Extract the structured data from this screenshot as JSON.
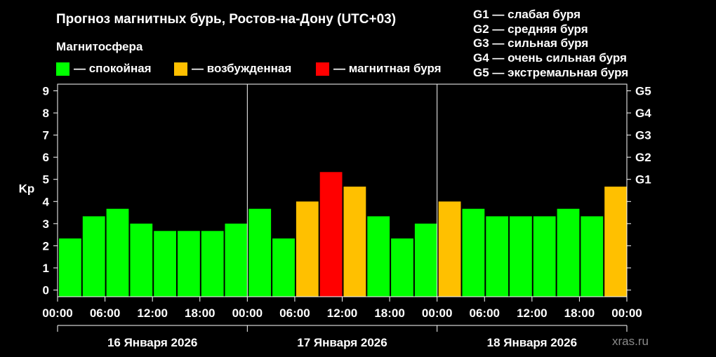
{
  "title": "Прогноз магнитных бурь, Ростов-на-Дону (UTC+03)",
  "legend": {
    "heading": "Магнитосфера",
    "items": [
      {
        "label": "— спокойная",
        "color": "#00ff00"
      },
      {
        "label": "— возбужденная",
        "color": "#ffc000"
      },
      {
        "label": "— магнитная буря",
        "color": "#ff0000"
      }
    ]
  },
  "storm_scale": [
    "G1 — слабая буря",
    "G2 — средняя буря",
    "G3 — сильная буря",
    "G4 — очень сильная буря",
    "G5 — экстремальная буря"
  ],
  "watermark": "xras.ru",
  "chart_data": {
    "type": "bar",
    "ylabel": "Kp",
    "ylim": [
      -0.3,
      9.3
    ],
    "y_ticks": [
      "0",
      "1",
      "2",
      "3",
      "4",
      "5",
      "6",
      "7",
      "8",
      "9"
    ],
    "right_ticks": [
      {
        "value": 5,
        "label": "G1"
      },
      {
        "value": 6,
        "label": "G2"
      },
      {
        "value": 7,
        "label": "G3"
      },
      {
        "value": 8,
        "label": "G4"
      },
      {
        "value": 9,
        "label": "G5"
      }
    ],
    "x_tick_labels": [
      "00:00",
      "06:00",
      "12:00",
      "18:00",
      "00:00",
      "06:00",
      "12:00",
      "18:00",
      "00:00",
      "06:00",
      "12:00",
      "18:00",
      "00:00"
    ],
    "days": [
      "16 Января 2026",
      "17 Января 2026",
      "18 Января 2026"
    ],
    "interval_hours": 3,
    "values": [
      2.33,
      3.33,
      3.67,
      3.0,
      2.67,
      2.67,
      2.67,
      3.0,
      3.67,
      2.33,
      4.0,
      5.33,
      4.67,
      3.33,
      2.33,
      3.0,
      4.0,
      3.67,
      3.33,
      3.33,
      3.33,
      3.67,
      3.33,
      4.67
    ],
    "levels": [
      "quiet",
      "quiet",
      "quiet",
      "quiet",
      "quiet",
      "quiet",
      "quiet",
      "quiet",
      "quiet",
      "quiet",
      "active",
      "storm",
      "active",
      "quiet",
      "quiet",
      "quiet",
      "active",
      "quiet",
      "quiet",
      "quiet",
      "quiet",
      "quiet",
      "quiet",
      "active"
    ],
    "level_colors": {
      "quiet": "#00ff00",
      "active": "#ffc000",
      "storm": "#ff0000"
    },
    "grid": false
  }
}
